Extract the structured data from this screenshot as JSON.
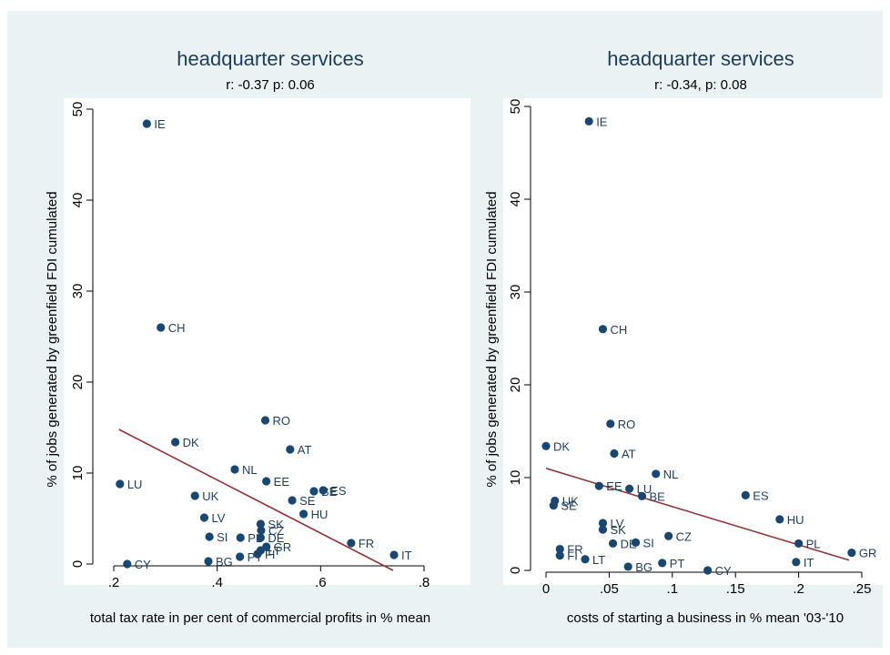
{
  "colors": {
    "background": "#eaf2f3",
    "plot_area": "#ffffff",
    "marker": "#1a476f",
    "fit_line": "#90353b",
    "title": "#1f3d5a"
  },
  "chart_data": [
    {
      "type": "scatter",
      "title": "headquarter services",
      "subtitle": "r:  -0.37 p: 0.06",
      "xlabel": "total tax rate in per cent of commercial profits in % mean",
      "ylabel": "% of jobs generated by greenfield FDI cumulated",
      "xlim": [
        0.2,
        0.8
      ],
      "ylim": [
        0,
        50
      ],
      "xticks": [
        0.2,
        0.4,
        0.6,
        0.8
      ],
      "xtick_labels": [
        ".2",
        ".4",
        ".6",
        ".8"
      ],
      "yticks": [
        0,
        10,
        20,
        30,
        40,
        50
      ],
      "ytick_labels": [
        "0",
        "10",
        "20",
        "30",
        "40",
        "50"
      ],
      "grid": false,
      "fit_line": [
        [
          0.21,
          14.8
        ],
        [
          0.74,
          -0.7
        ]
      ],
      "points": [
        {
          "label": "IE",
          "x": 0.264,
          "y": 48.4
        },
        {
          "label": "CH",
          "x": 0.291,
          "y": 26.0
        },
        {
          "label": "RO",
          "x": 0.493,
          "y": 15.8
        },
        {
          "label": "DK",
          "x": 0.319,
          "y": 13.4
        },
        {
          "label": "AT",
          "x": 0.541,
          "y": 12.6
        },
        {
          "label": "NL",
          "x": 0.434,
          "y": 10.4
        },
        {
          "label": "EE",
          "x": 0.495,
          "y": 9.1
        },
        {
          "label": "LU",
          "x": 0.212,
          "y": 8.8
        },
        {
          "label": "BE",
          "x": 0.587,
          "y": 8.0
        },
        {
          "label": "ES",
          "x": 0.605,
          "y": 8.1
        },
        {
          "label": "UK",
          "x": 0.357,
          "y": 7.5
        },
        {
          "label": "SE",
          "x": 0.545,
          "y": 7.0
        },
        {
          "label": "HU",
          "x": 0.567,
          "y": 5.5
        },
        {
          "label": "LV",
          "x": 0.375,
          "y": 5.1
        },
        {
          "label": "SK",
          "x": 0.484,
          "y": 4.4
        },
        {
          "label": "CZ",
          "x": 0.485,
          "y": 3.7
        },
        {
          "label": "SI",
          "x": 0.385,
          "y": 3.0
        },
        {
          "label": "PL",
          "x": 0.445,
          "y": 2.9
        },
        {
          "label": "DE",
          "x": 0.484,
          "y": 2.9
        },
        {
          "label": "FR",
          "x": 0.659,
          "y": 2.3
        },
        {
          "label": "GR",
          "x": 0.495,
          "y": 1.9
        },
        {
          "label": "LT",
          "x": 0.484,
          "y": 1.5
        },
        {
          "label": "FI",
          "x": 0.478,
          "y": 1.1
        },
        {
          "label": "PT",
          "x": 0.444,
          "y": 0.8
        },
        {
          "label": "IT",
          "x": 0.742,
          "y": 1.0
        },
        {
          "label": "BG",
          "x": 0.383,
          "y": 0.3
        },
        {
          "label": "CY",
          "x": 0.226,
          "y": 0.0
        }
      ]
    },
    {
      "type": "scatter",
      "title": "headquarter services",
      "subtitle": "r: -0.34, p: 0.08",
      "xlabel": "costs of starting a business in % mean '03-'10",
      "ylabel": "% of jobs generated by greenfield FDI cumulated",
      "xlim": [
        0,
        0.25
      ],
      "ylim": [
        0,
        50
      ],
      "xticks": [
        0,
        0.05,
        0.1,
        0.15,
        0.2,
        0.25
      ],
      "xtick_labels": [
        "0",
        ".05",
        ".1",
        ".15",
        ".2",
        ".25"
      ],
      "yticks": [
        0,
        10,
        20,
        30,
        40,
        50
      ],
      "ytick_labels": [
        "0",
        "10",
        "20",
        "30",
        "40",
        "50"
      ],
      "grid": false,
      "fit_line": [
        [
          0.0,
          11.0
        ],
        [
          0.24,
          1.1
        ]
      ],
      "points": [
        {
          "label": "IE",
          "x": 0.034,
          "y": 48.4
        },
        {
          "label": "CH",
          "x": 0.045,
          "y": 26.0
        },
        {
          "label": "RO",
          "x": 0.051,
          "y": 15.8
        },
        {
          "label": "DK",
          "x": 0.0,
          "y": 13.4
        },
        {
          "label": "AT",
          "x": 0.054,
          "y": 12.6
        },
        {
          "label": "NL",
          "x": 0.087,
          "y": 10.4
        },
        {
          "label": "EE",
          "x": 0.042,
          "y": 9.1
        },
        {
          "label": "LU",
          "x": 0.066,
          "y": 8.8
        },
        {
          "label": "BE",
          "x": 0.076,
          "y": 8.0
        },
        {
          "label": "ES",
          "x": 0.158,
          "y": 8.1
        },
        {
          "label": "UK",
          "x": 0.007,
          "y": 7.5
        },
        {
          "label": "SE",
          "x": 0.006,
          "y": 7.0
        },
        {
          "label": "HU",
          "x": 0.185,
          "y": 5.5
        },
        {
          "label": "LV",
          "x": 0.045,
          "y": 5.1
        },
        {
          "label": "SK",
          "x": 0.045,
          "y": 4.4
        },
        {
          "label": "CZ",
          "x": 0.097,
          "y": 3.7
        },
        {
          "label": "PL",
          "x": 0.2,
          "y": 2.9
        },
        {
          "label": "DE",
          "x": 0.053,
          "y": 2.9
        },
        {
          "label": "SI",
          "x": 0.071,
          "y": 3.0
        },
        {
          "label": "FR",
          "x": 0.011,
          "y": 2.3
        },
        {
          "label": "GR",
          "x": 0.242,
          "y": 1.9
        },
        {
          "label": "FI",
          "x": 0.011,
          "y": 1.6
        },
        {
          "label": "LT",
          "x": 0.031,
          "y": 1.2
        },
        {
          "label": "IT",
          "x": 0.198,
          "y": 0.9
        },
        {
          "label": "PT",
          "x": 0.092,
          "y": 0.8
        },
        {
          "label": "BG",
          "x": 0.065,
          "y": 0.4
        },
        {
          "label": "CY",
          "x": 0.128,
          "y": 0.0
        }
      ]
    }
  ]
}
